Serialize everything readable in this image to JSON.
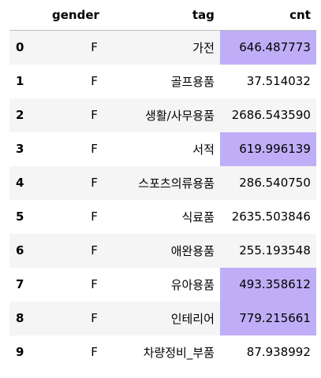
{
  "table": {
    "columns": {
      "index": "",
      "gender": "gender",
      "tag": "tag",
      "cnt": "cnt"
    },
    "highlight_color": "#bfaef7",
    "rows": [
      {
        "index": "0",
        "gender": "F",
        "tag": "가전",
        "cnt": "646.487773",
        "highlight": true
      },
      {
        "index": "1",
        "gender": "F",
        "tag": "골프용품",
        "cnt": "37.514032",
        "highlight": false
      },
      {
        "index": "2",
        "gender": "F",
        "tag": "생활/사무용품",
        "cnt": "2686.543590",
        "highlight": false
      },
      {
        "index": "3",
        "gender": "F",
        "tag": "서적",
        "cnt": "619.996139",
        "highlight": true
      },
      {
        "index": "4",
        "gender": "F",
        "tag": "스포츠의류용품",
        "cnt": "286.540750",
        "highlight": false
      },
      {
        "index": "5",
        "gender": "F",
        "tag": "식료품",
        "cnt": "2635.503846",
        "highlight": false
      },
      {
        "index": "6",
        "gender": "F",
        "tag": "애완용품",
        "cnt": "255.193548",
        "highlight": false
      },
      {
        "index": "7",
        "gender": "F",
        "tag": "유아용품",
        "cnt": "493.358612",
        "highlight": true
      },
      {
        "index": "8",
        "gender": "F",
        "tag": "인테리어",
        "cnt": "779.215661",
        "highlight": true
      },
      {
        "index": "9",
        "gender": "F",
        "tag": "차량정비_부품",
        "cnt": "87.938992",
        "highlight": false
      }
    ]
  }
}
